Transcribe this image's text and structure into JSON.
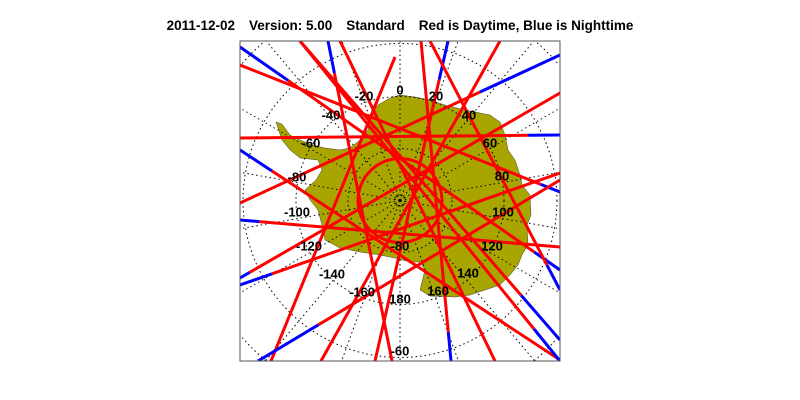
{
  "title": {
    "date": "2011-12-02",
    "version": "Version: 5.00",
    "mode": "Standard",
    "legend_text": "Red is Daytime, Blue is Nighttime"
  },
  "colors": {
    "land": "#a8a400",
    "day_track": "#ff0000",
    "night_track": "#0000ff",
    "grid": "#000000"
  },
  "map": {
    "projection": "south polar stereographic",
    "longitude_labels": [
      "0",
      "20",
      "40",
      "60",
      "80",
      "100",
      "120",
      "140",
      "160",
      "180",
      "-160",
      "-140",
      "-120",
      "-100",
      "-80",
      "-60",
      "-40",
      "-20"
    ],
    "latitude_labels": [
      "-80",
      "-60"
    ]
  }
}
